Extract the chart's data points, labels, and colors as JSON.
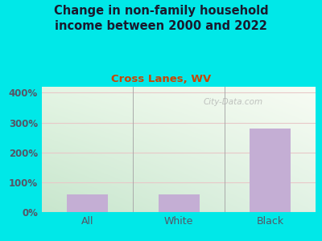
{
  "title": "Change in non-family household\nincome between 2000 and 2022",
  "subtitle": "Cross Lanes, WV",
  "categories": [
    "All",
    "White",
    "Black"
  ],
  "values": [
    60,
    60,
    280
  ],
  "bar_color": "#c4aed4",
  "background_color": "#00e8e8",
  "plot_bg_top_left": "#d8eedc",
  "plot_bg_top_right": "#f5f8f0",
  "plot_bg_bottom": "#c8e8d0",
  "title_color": "#1a1a2e",
  "subtitle_color": "#cc4400",
  "tick_label_color": "#555566",
  "yticks": [
    0,
    100,
    200,
    300,
    400
  ],
  "ylim": [
    0,
    420
  ],
  "watermark": "City-Data.com",
  "title_fontsize": 10.5,
  "subtitle_fontsize": 9.5
}
